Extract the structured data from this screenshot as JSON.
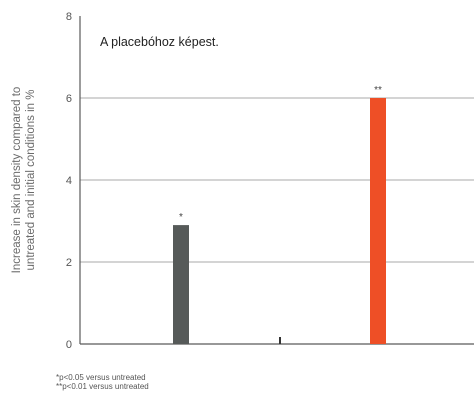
{
  "chart_data": {
    "type": "bar",
    "ylabel_lines": [
      "Increase in skin density compared to",
      "untreated and initial conditions in %"
    ],
    "ylim": [
      0,
      8
    ],
    "yticks": [
      "0",
      "2",
      "4",
      "6",
      "8"
    ],
    "grid": true,
    "annotation": "A placebóhoz képest.",
    "bars": [
      {
        "value": 2.9,
        "color": "#565a59",
        "significance": "*"
      },
      {
        "value": 6.0,
        "color": "#ee4f26",
        "significance": "**"
      }
    ],
    "x_tick_marks": 1,
    "footnotes": [
      "*p<0.05 versus untreated",
      "**p<0.01 versus untreated"
    ]
  }
}
